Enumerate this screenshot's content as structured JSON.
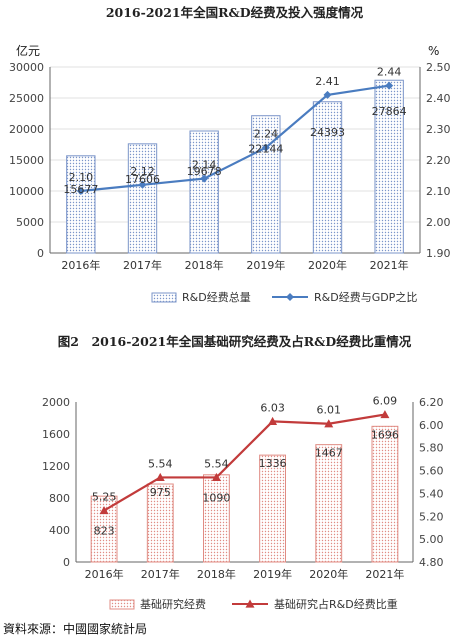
{
  "source": "資料來源：中國國家統計局",
  "chart_data": [
    {
      "type": "bar+line",
      "title": "2016-2021年全国R&D经费及投入强度情况",
      "categories": [
        "2016年",
        "2017年",
        "2018年",
        "2019年",
        "2020年",
        "2021年"
      ],
      "y_left": {
        "unit": "亿元",
        "range": [
          0,
          30000
        ],
        "ticks": [
          "0",
          "5000",
          "10000",
          "15000",
          "20000",
          "25000",
          "30000"
        ]
      },
      "y_right": {
        "unit": "%",
        "range": [
          1.9,
          2.5
        ],
        "ticks": [
          "1.90",
          "2.00",
          "2.10",
          "2.20",
          "2.30",
          "2.40",
          "2.50"
        ]
      },
      "series": [
        {
          "name": "R&D经费总量",
          "kind": "bar",
          "axis": "left",
          "values": [
            15677,
            17606,
            19678,
            22144,
            24393,
            27864
          ]
        },
        {
          "name": "R&D经费与GDP之比",
          "kind": "line",
          "axis": "right",
          "values": [
            2.1,
            2.12,
            2.14,
            2.24,
            2.41,
            2.44
          ]
        }
      ],
      "bar_labels": [
        "15677",
        "17606",
        "19678",
        "22144",
        "24393",
        "27864"
      ],
      "line_labels": [
        "2.10",
        "2.12",
        "2.14",
        "2.24",
        "2.41",
        "2.44"
      ],
      "colors": {
        "bar": "#7b95c9",
        "line": "#4a7cc0"
      },
      "legend_position": "bottom"
    },
    {
      "type": "bar+line",
      "title": "图2　2016-2021年全国基础研究经费及占R&D经费比重情况",
      "categories": [
        "2016年",
        "2017年",
        "2018年",
        "2019年",
        "2020年",
        "2021年"
      ],
      "y_left": {
        "unit": "",
        "range": [
          0,
          2000
        ],
        "ticks": [
          "0",
          "400",
          "800",
          "1200",
          "1600",
          "2000"
        ]
      },
      "y_right": {
        "unit": "",
        "range": [
          4.8,
          6.2
        ],
        "ticks": [
          "4.80",
          "5.00",
          "5.20",
          "5.40",
          "5.60",
          "5.80",
          "6.00",
          "6.20"
        ]
      },
      "series": [
        {
          "name": "基础研究经费",
          "kind": "bar",
          "axis": "left",
          "values": [
            823,
            975,
            1090,
            1336,
            1467,
            1696
          ]
        },
        {
          "name": "基础研究占R&D经费比重",
          "kind": "line",
          "axis": "right",
          "values": [
            5.25,
            5.54,
            5.54,
            6.03,
            6.01,
            6.09
          ]
        }
      ],
      "bar_labels": [
        "823",
        "975",
        "1090",
        "1336",
        "1467",
        "1696"
      ],
      "line_labels": [
        "5.25",
        "5.54",
        "5.54",
        "6.03",
        "6.01",
        "6.09"
      ],
      "colors": {
        "bar": "#e08c84",
        "line": "#c23b3b"
      },
      "legend_position": "bottom"
    }
  ]
}
